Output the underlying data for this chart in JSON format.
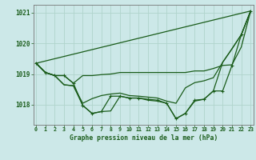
{
  "title": "Graphe pression niveau de la mer (hPa)",
  "bg_color": "#cce8e8",
  "grid_color": "#b0d4cc",
  "line_color": "#1a5c1a",
  "tick_color": "#1a5c1a",
  "series": [
    {
      "data": [
        1019.35,
        1019.05,
        1018.95,
        1018.95,
        1018.7,
        1017.98,
        1017.72,
        1017.78,
        1018.28,
        1018.28,
        1018.22,
        1018.22,
        1018.18,
        1018.15,
        1018.05,
        1017.55,
        1017.72,
        1018.15,
        1018.18,
        1018.45,
        1018.45,
        1019.28,
        1020.28,
        1021.05
      ],
      "marker": true
    },
    {
      "data": [
        1019.35,
        1019.05,
        1018.95,
        1018.95,
        1018.7,
        1018.95,
        1018.95,
        1018.98,
        1019.0,
        1019.05,
        1019.05,
        1019.05,
        1019.05,
        1019.05,
        1019.05,
        1019.05,
        1019.05,
        1019.1,
        1019.1,
        1019.18,
        1019.28,
        1019.3,
        1019.88,
        1021.05
      ],
      "marker": false
    },
    {
      "data": [
        1019.35,
        1019.05,
        1018.95,
        1018.65,
        1018.62,
        1017.98,
        1017.72,
        1017.78,
        1017.8,
        1018.28,
        1018.22,
        1018.22,
        1018.15,
        1018.12,
        1018.05,
        1017.55,
        1017.72,
        1018.12,
        1018.18,
        1018.45,
        1019.38,
        1019.82,
        1020.28,
        1021.05
      ],
      "marker": false
    },
    {
      "data": [
        1019.35,
        1019.05,
        1018.95,
        1018.65,
        1018.62,
        1018.05,
        1018.2,
        1018.3,
        1018.35,
        1018.38,
        1018.3,
        1018.28,
        1018.25,
        1018.22,
        1018.12,
        1018.05,
        1018.55,
        1018.72,
        1018.78,
        1018.88,
        1019.38,
        1019.82,
        1020.28,
        1021.05
      ],
      "marker": false
    }
  ],
  "straight_line": [
    1019.35,
    1021.05
  ],
  "ylim": [
    1017.35,
    1021.25
  ],
  "yticks": [
    1018,
    1019,
    1020,
    1021
  ],
  "xlim": [
    -0.3,
    23.3
  ],
  "xticks": [
    0,
    1,
    2,
    3,
    4,
    5,
    6,
    7,
    8,
    9,
    10,
    11,
    12,
    13,
    14,
    15,
    16,
    17,
    18,
    19,
    20,
    21,
    22,
    23
  ],
  "figsize": [
    3.2,
    2.0
  ],
  "dpi": 100
}
